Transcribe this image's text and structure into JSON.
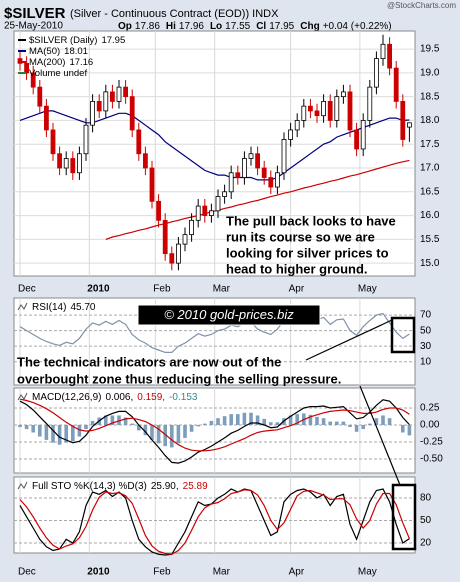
{
  "header": {
    "symbol": "$SILVER",
    "description": "(Silver - Continuous Contract (EOD)) INDX",
    "source": "@StockCharts.com",
    "date": "25-May-2010",
    "quote": [
      {
        "label": "Op",
        "value": "17.86"
      },
      {
        "label": "Hi",
        "value": "17.96"
      },
      {
        "label": "Lo",
        "value": "17.55"
      },
      {
        "label": "Cl",
        "value": "17.95"
      },
      {
        "label": "Chg",
        "value": "+0.04 (+0.22%)"
      }
    ]
  },
  "watermark": "© 2010 gold-prices.biz",
  "annotation": [
    "The technical indicators are now out of the",
    "overbought zone thus reducing the selling pressure."
  ],
  "chart_data": [
    {
      "type": "candlestick",
      "legend": [
        {
          "name": "$SILVER (Daily)",
          "label": "17.95",
          "color": "#000000"
        },
        {
          "name": "MA(50)",
          "label": "18.01",
          "color": "#000080"
        },
        {
          "name": "MA(200)",
          "label": "17.16",
          "color": "#cc0000"
        },
        {
          "name": "Volume undef",
          "color": "#2e7d32"
        }
      ],
      "up_color": "#000000",
      "down_color": "#cc0000",
      "open": [
        19.3,
        19.2,
        19.0,
        18.7,
        18.3,
        17.8,
        17.3,
        17.0,
        17.2,
        16.9,
        17.3,
        17.9,
        18.4,
        18.2,
        18.6,
        18.4,
        18.7,
        18.5,
        17.8,
        17.3,
        17.0,
        16.3,
        15.9,
        15.2,
        15.0,
        15.4,
        15.6,
        15.9,
        16.2,
        16.0,
        16.1,
        16.4,
        16.5,
        16.9,
        16.8,
        17.2,
        17.3,
        17.0,
        16.8,
        16.6,
        16.9,
        17.6,
        17.8,
        18.0,
        18.3,
        18.2,
        18.1,
        18.4,
        18.0,
        18.5,
        18.6,
        17.8,
        17.4,
        18.0,
        18.7,
        19.3,
        19.6,
        19.1,
        18.4,
        17.86
      ],
      "high": [
        19.45,
        19.35,
        19.15,
        18.85,
        18.45,
        17.95,
        17.45,
        17.35,
        17.35,
        17.45,
        18.05,
        18.55,
        18.55,
        18.75,
        18.75,
        18.85,
        18.85,
        18.65,
        17.95,
        17.45,
        17.15,
        16.45,
        16.05,
        15.35,
        15.55,
        15.75,
        16.05,
        16.35,
        16.35,
        16.25,
        16.55,
        16.65,
        17.05,
        17.05,
        17.35,
        17.45,
        17.45,
        17.15,
        16.95,
        17.05,
        17.75,
        17.95,
        18.15,
        18.45,
        18.45,
        18.35,
        18.55,
        18.55,
        18.65,
        18.75,
        18.75,
        17.95,
        18.15,
        18.85,
        19.45,
        19.8,
        19.75,
        19.25,
        18.55,
        17.96
      ],
      "low": [
        19.05,
        18.85,
        18.55,
        18.15,
        17.65,
        17.15,
        16.85,
        16.85,
        16.75,
        16.75,
        17.15,
        17.75,
        18.05,
        18.05,
        18.25,
        18.25,
        18.35,
        17.65,
        17.15,
        16.85,
        16.15,
        15.75,
        15.05,
        14.85,
        14.85,
        15.25,
        15.45,
        15.75,
        15.85,
        15.85,
        15.95,
        16.25,
        16.35,
        16.65,
        16.65,
        17.05,
        16.85,
        16.65,
        16.45,
        16.45,
        16.75,
        17.45,
        17.65,
        17.85,
        18.05,
        17.95,
        17.95,
        17.85,
        17.85,
        18.35,
        17.65,
        17.25,
        17.25,
        17.85,
        18.55,
        19.15,
        18.95,
        18.25,
        17.45,
        17.55
      ],
      "close": [
        19.2,
        19.0,
        18.7,
        18.3,
        17.8,
        17.3,
        17.0,
        17.2,
        16.9,
        17.3,
        17.9,
        18.4,
        18.2,
        18.6,
        18.4,
        18.7,
        18.5,
        17.8,
        17.3,
        17.0,
        16.3,
        15.9,
        15.2,
        15.0,
        15.4,
        15.6,
        15.9,
        16.2,
        16.0,
        16.1,
        16.4,
        16.5,
        16.9,
        16.8,
        17.2,
        17.3,
        17.0,
        16.8,
        16.6,
        16.9,
        17.6,
        17.8,
        18.0,
        18.3,
        18.2,
        18.1,
        18.4,
        18.0,
        18.5,
        18.6,
        17.8,
        17.4,
        18.0,
        18.7,
        19.3,
        19.6,
        19.1,
        18.4,
        17.6,
        17.95
      ],
      "series": [
        {
          "name": "MA(50)",
          "color": "#000080",
          "values": [
            18.0,
            18.05,
            18.1,
            18.15,
            18.2,
            18.2,
            18.15,
            18.1,
            18.05,
            18.0,
            17.95,
            17.95,
            18.0,
            18.05,
            18.1,
            18.15,
            18.15,
            18.1,
            18.0,
            17.9,
            17.8,
            17.7,
            17.55,
            17.45,
            17.35,
            17.25,
            17.15,
            17.05,
            16.95,
            16.9,
            16.85,
            16.85,
            16.8,
            16.8,
            16.8,
            16.8,
            16.75,
            16.75,
            16.75,
            16.8,
            16.9,
            17.0,
            17.1,
            17.2,
            17.3,
            17.4,
            17.5,
            17.55,
            17.65,
            17.7,
            17.75,
            17.8,
            17.85,
            17.9,
            17.95,
            18.0,
            18.05,
            18.05,
            18.0,
            18.01
          ]
        },
        {
          "name": "MA(200)",
          "color": "#cc0000",
          "values": [
            null,
            null,
            null,
            null,
            null,
            null,
            null,
            null,
            null,
            null,
            null,
            null,
            null,
            15.5,
            15.55,
            15.58,
            15.62,
            15.65,
            15.69,
            15.72,
            15.76,
            15.8,
            15.83,
            15.87,
            15.9,
            15.94,
            15.97,
            16.0,
            16.04,
            16.08,
            16.11,
            16.15,
            16.18,
            16.22,
            16.25,
            16.29,
            16.32,
            16.36,
            16.4,
            16.43,
            16.47,
            16.5,
            16.54,
            16.58,
            16.61,
            16.65,
            16.68,
            16.72,
            16.75,
            16.79,
            16.83,
            16.86,
            16.9,
            16.94,
            16.98,
            17.02,
            17.06,
            17.1,
            17.13,
            17.16
          ]
        }
      ],
      "ylim": [
        14.73,
        19.88
      ],
      "yticks": [
        {
          "value": 15,
          "label": "15.0"
        },
        15.5,
        {
          "value": 16,
          "label": "16.0"
        },
        16.5,
        {
          "value": 17,
          "label": "17.0"
        },
        17.5,
        {
          "value": 18,
          "label": "18.0"
        },
        18.5,
        {
          "value": 19,
          "label": "19.0"
        },
        19.5
      ],
      "xticks": [
        {
          "value": 0,
          "label": "Dec"
        },
        {
          "value": 10.5,
          "label": "2010"
        },
        {
          "value": 20.5,
          "label": "Feb"
        },
        {
          "value": 29.5,
          "label": "Mar"
        },
        {
          "value": 41,
          "label": "Apr"
        },
        {
          "value": 51.5,
          "label": "May"
        }
      ],
      "annotation": [
        "The pull back looks to have",
        "run its course so we are",
        "looking for silver prices to",
        "head to higher ground."
      ]
    },
    {
      "type": "line",
      "title": "RSI(14)",
      "title_values": [
        {
          "text": "45.70",
          "color": "#000000"
        }
      ],
      "series": [
        {
          "color": "#8092aa",
          "values": [
            55,
            50,
            45,
            40,
            36,
            33,
            31,
            35,
            33,
            40,
            52,
            60,
            57,
            62,
            58,
            63,
            58,
            45,
            38,
            34,
            28,
            25,
            22,
            22,
            30,
            34,
            40,
            46,
            43,
            45,
            50,
            52,
            57,
            55,
            60,
            61,
            52,
            48,
            45,
            52,
            63,
            66,
            68,
            70,
            66,
            64,
            67,
            58,
            64,
            65,
            50,
            44,
            55,
            63,
            70,
            72,
            60,
            48,
            40,
            45.7
          ]
        }
      ],
      "ylim": [
        -20,
        92
      ],
      "yticks": [
        70,
        50,
        30,
        10
      ]
    },
    {
      "type": "macd",
      "title": "MACD(12,26,9)",
      "title_values": [
        {
          "text": "0.006,",
          "color": "#000000"
        },
        {
          "text": "0.159,",
          "color": "#cc0000"
        },
        {
          "text": "-0.153",
          "color": "#2e8b8b"
        }
      ],
      "histogram": {
        "color": "#7d9dbd",
        "values": [
          -0.03,
          -0.06,
          -0.11,
          -0.17,
          -0.22,
          -0.26,
          -0.29,
          -0.26,
          -0.24,
          -0.17,
          -0.06,
          0.06,
          0.11,
          0.14,
          0.14,
          0.14,
          0.11,
          0.02,
          -0.08,
          -0.15,
          -0.22,
          -0.27,
          -0.31,
          -0.33,
          -0.27,
          -0.19,
          -0.1,
          -0.02,
          0.02,
          0.06,
          0.1,
          0.13,
          0.16,
          0.16,
          0.18,
          0.18,
          0.14,
          0.09,
          0.04,
          0.04,
          0.1,
          0.14,
          0.16,
          0.17,
          0.15,
          0.12,
          0.1,
          0.05,
          0.05,
          0.05,
          -0.03,
          -0.1,
          -0.06,
          0.02,
          0.1,
          0.14,
          0.1,
          0.0,
          -0.11,
          -0.153
        ]
      },
      "series": [
        {
          "color": "#000000",
          "values": [
            0.35,
            0.3,
            0.22,
            0.12,
            0.02,
            -0.08,
            -0.18,
            -0.22,
            -0.26,
            -0.24,
            -0.15,
            -0.02,
            0.06,
            0.13,
            0.17,
            0.2,
            0.2,
            0.12,
            0.0,
            -0.1,
            -0.22,
            -0.33,
            -0.45,
            -0.55,
            -0.56,
            -0.53,
            -0.47,
            -0.4,
            -0.36,
            -0.31,
            -0.25,
            -0.19,
            -0.12,
            -0.08,
            -0.02,
            0.03,
            0.03,
            0.0,
            -0.04,
            -0.03,
            0.06,
            0.13,
            0.19,
            0.25,
            0.27,
            0.27,
            0.28,
            0.25,
            0.26,
            0.27,
            0.18,
            0.09,
            0.11,
            0.19,
            0.29,
            0.37,
            0.35,
            0.25,
            0.11,
            0.006
          ]
        },
        {
          "color": "#cc0000",
          "values": [
            0.38,
            0.36,
            0.33,
            0.29,
            0.24,
            0.18,
            0.11,
            0.04,
            -0.02,
            -0.07,
            -0.09,
            -0.08,
            -0.05,
            -0.01,
            0.03,
            0.06,
            0.09,
            0.1,
            0.08,
            0.05,
            0.0,
            -0.06,
            -0.14,
            -0.22,
            -0.29,
            -0.34,
            -0.37,
            -0.38,
            -0.38,
            -0.37,
            -0.35,
            -0.32,
            -0.28,
            -0.24,
            -0.2,
            -0.15,
            -0.11,
            -0.09,
            -0.08,
            -0.07,
            -0.04,
            -0.01,
            0.03,
            0.08,
            0.12,
            0.15,
            0.18,
            0.2,
            0.21,
            0.22,
            0.21,
            0.19,
            0.17,
            0.17,
            0.19,
            0.23,
            0.25,
            0.25,
            0.22,
            0.159
          ]
        }
      ],
      "ylim": [
        -0.706,
        0.544
      ],
      "yticks": [
        0.25,
        {
          "value": 0,
          "label": "0.00"
        },
        -0.25,
        {
          "value": -0.5,
          "label": "-0.50"
        }
      ]
    },
    {
      "type": "line",
      "title": "Full STO %K(14,3) %D(3)",
      "title_values": [
        {
          "text": "25.90,",
          "color": "#000000"
        },
        {
          "text": "25.89",
          "color": "#cc0000"
        }
      ],
      "series": [
        {
          "color": "#000000",
          "values": [
            70,
            55,
            40,
            25,
            15,
            10,
            12,
            25,
            20,
            35,
            70,
            88,
            85,
            90,
            82,
            88,
            80,
            50,
            25,
            15,
            8,
            5,
            4,
            5,
            20,
            35,
            55,
            75,
            70,
            72,
            80,
            85,
            92,
            88,
            92,
            90,
            70,
            50,
            30,
            35,
            75,
            85,
            90,
            92,
            88,
            80,
            85,
            70,
            82,
            85,
            45,
            25,
            50,
            75,
            90,
            92,
            75,
            45,
            20,
            25.9
          ]
        },
        {
          "color": "#cc0000",
          "values": [
            78,
            68,
            55,
            40,
            27,
            17,
            12,
            16,
            19,
            27,
            42,
            64,
            81,
            88,
            86,
            87,
            83,
            73,
            52,
            30,
            16,
            9,
            6,
            5,
            10,
            20,
            37,
            55,
            67,
            72,
            74,
            79,
            86,
            88,
            91,
            90,
            84,
            70,
            50,
            38,
            47,
            65,
            83,
            89,
            90,
            87,
            84,
            78,
            79,
            79,
            71,
            52,
            40,
            50,
            72,
            86,
            86,
            71,
            47,
            25.89
          ]
        }
      ],
      "ylim": [
        6.7,
        108
      ],
      "yticks": [
        80,
        50,
        20
      ],
      "xticks": [
        {
          "value": 0,
          "label": "Dec"
        },
        {
          "value": 10.5,
          "label": "2010"
        },
        {
          "value": 20.5,
          "label": "Feb"
        },
        {
          "value": 29.5,
          "label": "Mar"
        },
        {
          "value": 41,
          "label": "Apr"
        },
        {
          "value": 51.5,
          "label": "May"
        }
      ]
    }
  ]
}
